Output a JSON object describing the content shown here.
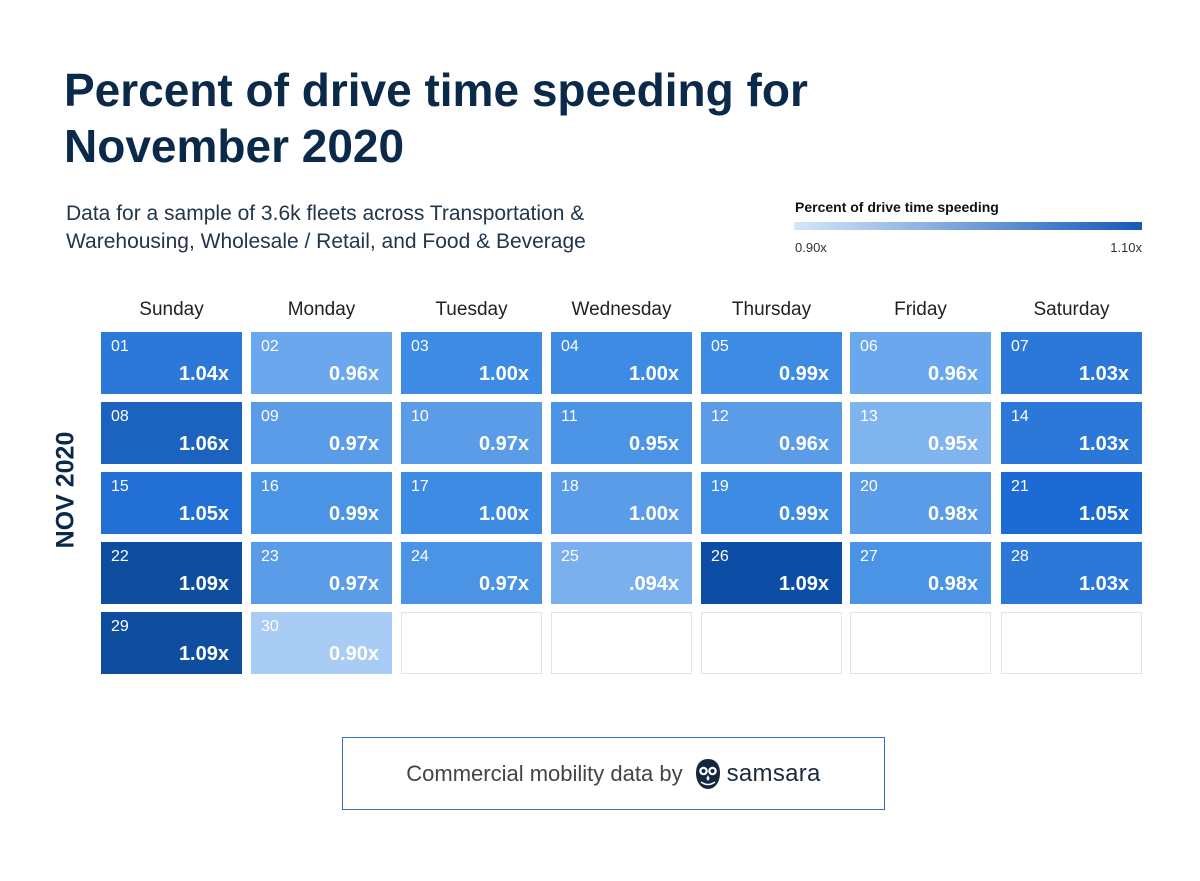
{
  "title_lines": [
    "Percent of drive time speeding for",
    "November 2020"
  ],
  "subtitle_lines": [
    "Data for a sample of 3.6k fleets across Transportation &",
    "Warehousing, Wholesale / Retail, and Food & Beverage"
  ],
  "legend": {
    "title": "Percent of drive time speeding",
    "min_label": "0.90x",
    "max_label": "1.10x",
    "min_value": 0.9,
    "max_value": 1.1,
    "min_color": "#d4e6fa",
    "max_color": "#1559b9"
  },
  "month_label": "NOV 2020",
  "footer": {
    "text": "Commercial mobility data by",
    "brand": "samsara",
    "logo_icon": "samsara-owl-icon"
  },
  "chart_data": {
    "type": "heatmap",
    "title": "Percent of drive time speeding for November 2020",
    "subtitle": "Data for a sample of 3.6k fleets across Transportation & Warehousing, Wholesale / Retail, and Food & Beverage",
    "row_label": "NOV 2020",
    "columns": [
      "Sunday",
      "Monday",
      "Tuesday",
      "Wednesday",
      "Thursday",
      "Friday",
      "Saturday"
    ],
    "color_scale": {
      "min": 0.9,
      "max": 1.1,
      "min_color": "#d4e6fa",
      "max_color": "#1559b9"
    },
    "weeks": [
      [
        {
          "day": "01",
          "value": 1.04,
          "label": "1.04x",
          "color": "#2b78d9"
        },
        {
          "day": "02",
          "value": 0.96,
          "label": "0.96x",
          "color": "#6aa7ec"
        },
        {
          "day": "03",
          "value": 1.0,
          "label": "1.00x",
          "color": "#3d8be2"
        },
        {
          "day": "04",
          "value": 1.0,
          "label": "1.00x",
          "color": "#3d8be2"
        },
        {
          "day": "05",
          "value": 0.99,
          "label": "0.99x",
          "color": "#3d8be2"
        },
        {
          "day": "06",
          "value": 0.96,
          "label": "0.96x",
          "color": "#6aa7ec"
        },
        {
          "day": "07",
          "value": 1.03,
          "label": "1.03x",
          "color": "#2b78d9"
        }
      ],
      [
        {
          "day": "08",
          "value": 1.06,
          "label": "1.06x",
          "color": "#1c63bf"
        },
        {
          "day": "09",
          "value": 0.97,
          "label": "0.97x",
          "color": "#5b9ce8"
        },
        {
          "day": "10",
          "value": 0.97,
          "label": "0.97x",
          "color": "#5b9ce8"
        },
        {
          "day": "11",
          "value": 0.95,
          "label": "0.95x",
          "color": "#4a93e5"
        },
        {
          "day": "12",
          "value": 0.96,
          "label": "0.96x",
          "color": "#5b9ce8"
        },
        {
          "day": "13",
          "value": 0.95,
          "label": "0.95x",
          "color": "#80b4ee"
        },
        {
          "day": "14",
          "value": 1.03,
          "label": "1.03x",
          "color": "#2b78d9"
        }
      ],
      [
        {
          "day": "15",
          "value": 1.05,
          "label": "1.05x",
          "color": "#2270d5"
        },
        {
          "day": "16",
          "value": 0.99,
          "label": "0.99x",
          "color": "#4a93e5"
        },
        {
          "day": "17",
          "value": 1.0,
          "label": "1.00x",
          "color": "#3d8be2"
        },
        {
          "day": "18",
          "value": 1.0,
          "label": "1.00x",
          "color": "#5b9ce8"
        },
        {
          "day": "19",
          "value": 0.99,
          "label": "0.99x",
          "color": "#3d8be2"
        },
        {
          "day": "20",
          "value": 0.98,
          "label": "0.98x",
          "color": "#5b9ce8"
        },
        {
          "day": "21",
          "value": 1.05,
          "label": "1.05x",
          "color": "#1c6ad3"
        }
      ],
      [
        {
          "day": "22",
          "value": 1.09,
          "label": "1.09x",
          "color": "#0f4e9f"
        },
        {
          "day": "23",
          "value": 0.97,
          "label": "0.97x",
          "color": "#5b9ce8"
        },
        {
          "day": "24",
          "value": 0.97,
          "label": "0.97x",
          "color": "#4a93e5"
        },
        {
          "day": "25",
          "value": 0.094,
          "label": ".094x",
          "color": "#7ab0ee"
        },
        {
          "day": "26",
          "value": 1.09,
          "label": "1.09x",
          "color": "#0c4ea6"
        },
        {
          "day": "27",
          "value": 0.98,
          "label": "0.98x",
          "color": "#4a93e5"
        },
        {
          "day": "28",
          "value": 1.03,
          "label": "1.03x",
          "color": "#2b78d9"
        }
      ],
      [
        {
          "day": "29",
          "value": 1.09,
          "label": "1.09x",
          "color": "#0f4e9f"
        },
        {
          "day": "30",
          "value": 0.9,
          "label": "0.90x",
          "color": "#a9ccf4"
        },
        null,
        null,
        null,
        null,
        null
      ]
    ]
  }
}
